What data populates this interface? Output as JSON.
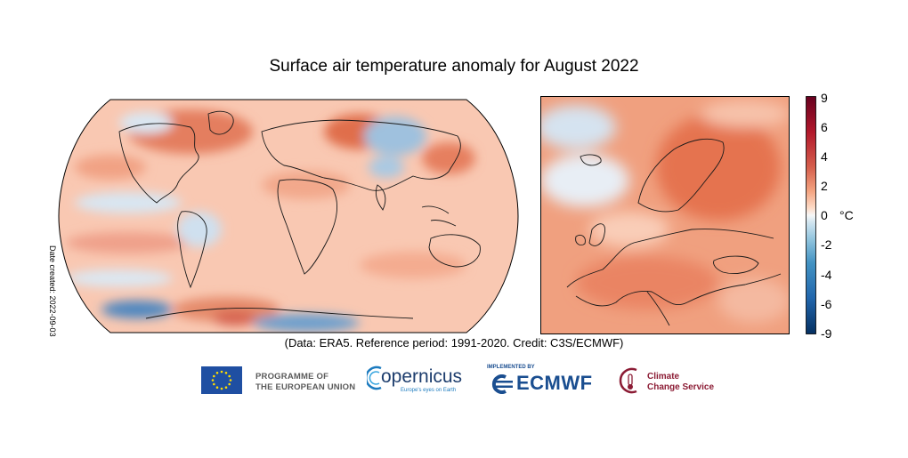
{
  "title": "Surface air temperature anomaly for August 2022",
  "date_created": "Date created: 2022-09-03",
  "credit": "(Data: ERA5.  Reference period: 1991-2020.  Credit: C3S/ECMWF)",
  "colorbar": {
    "ticks": [
      "9",
      "6",
      "4",
      "2",
      "0",
      "-2",
      "-4",
      "-6",
      "-9"
    ],
    "unit": "°C",
    "range": [
      -9,
      9
    ],
    "colors": [
      "#08306b",
      "#2166ac",
      "#4393c3",
      "#92c5de",
      "#d1e5f0",
      "#f7f7f7",
      "#fddbc7",
      "#f4a582",
      "#d6604d",
      "#b2182b",
      "#67001f"
    ]
  },
  "maps": {
    "world": {
      "name": "global-anomaly-map",
      "dominant_color": "#f4a582"
    },
    "europe": {
      "name": "europe-anomaly-map",
      "dominant_color": "#e7744f"
    }
  },
  "logos": {
    "eu_programme": "PROGRAMME OF\nTHE EUROPEAN UNION",
    "copernicus": "opernicus",
    "copernicus_tagline": "Europe's eyes on Earth",
    "ecmwf_implemented": "IMPLEMENTED BY",
    "ecmwf": "ECMWF",
    "c3s": "Climate\nChange Service"
  }
}
